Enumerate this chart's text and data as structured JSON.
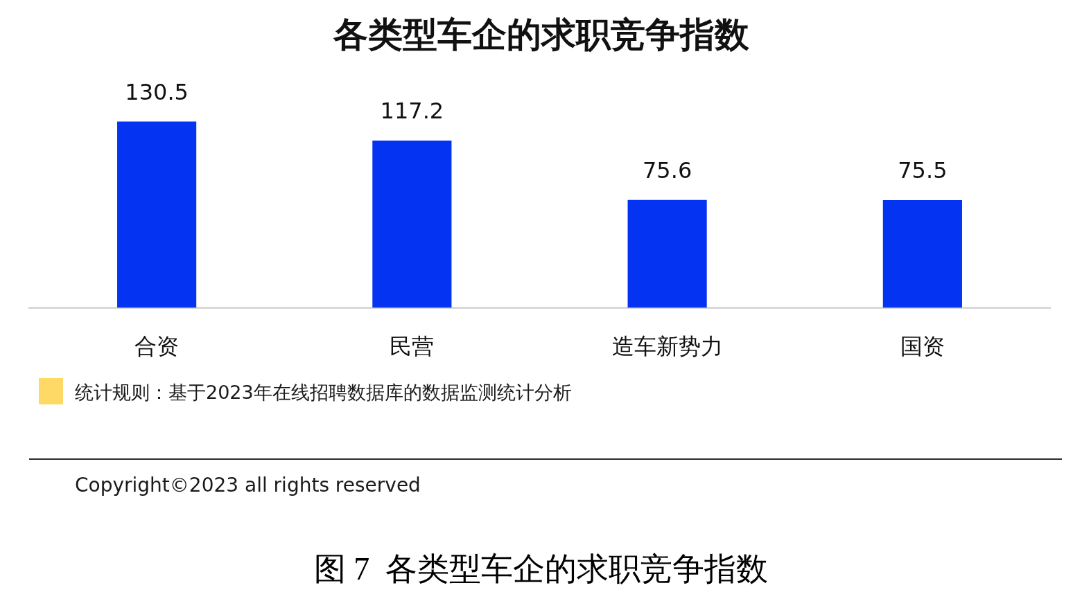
{
  "chart_data": {
    "type": "bar",
    "title": "各类型车企的求职竞争指数",
    "categories": [
      "合资",
      "民营",
      "造车新势力",
      "国资"
    ],
    "values": [
      130.5,
      117.2,
      75.6,
      75.5
    ],
    "color": "#0433f2",
    "data_labels": true,
    "annotations": [
      "统计规则：基于2023年在线招聘数据库的数据监测统计分析",
      "Copyright©2023 all rights reserved",
      "图 7  各类型车企的求职竞争指数"
    ]
  }
}
